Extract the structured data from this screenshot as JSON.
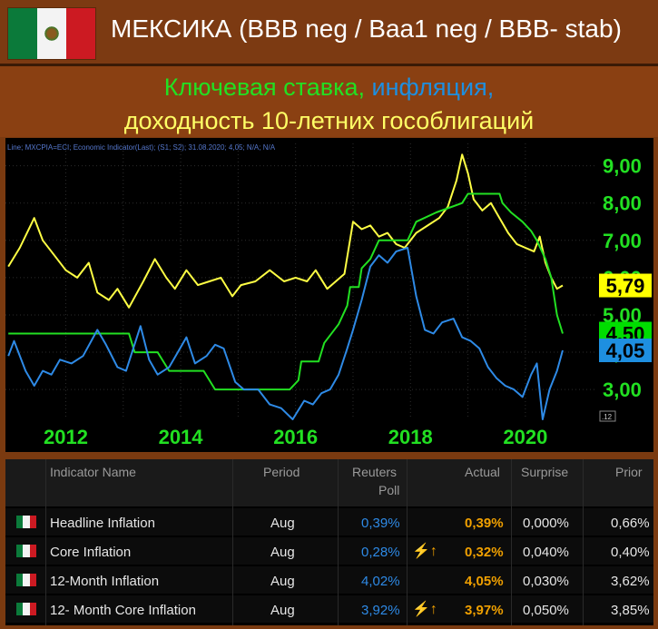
{
  "header": {
    "title": "МЕКСИКА (BBB neg / Baa1 neg / BBB- stab)",
    "flag_colors": [
      "#0b7a3a",
      "#f3f3f3",
      "#cc1a22"
    ]
  },
  "subtitle": {
    "part1_green": "Ключевая ставка,",
    "part1_blue": "инфляция,",
    "line2": "доходность 10-летних гособлигаций"
  },
  "chart_data": {
    "type": "line",
    "info_text": "Line; MXCPIA=ECI; Economic Indicator(Last); (S1; S2); 31.08.2020; 4,05; N/A; N/A",
    "x_tick_labels": [
      "2012",
      "2014",
      "2016",
      "2018",
      "2020"
    ],
    "y_tick_labels": [
      "9,00",
      "8,00",
      "7,00",
      "6,00",
      "5,00",
      "4,00",
      "3,00"
    ],
    "ylim": [
      2.2,
      9.6
    ],
    "xlim": [
      2010.95,
      2021.25
    ],
    "colors": {
      "yield": "#ffff44",
      "rate": "#22e022",
      "inflation": "#2e8ae6"
    },
    "last_value_labels": [
      {
        "series": "yield",
        "value": "5,79",
        "color": "#ffff00"
      },
      {
        "series": "rate",
        "value": "4,50",
        "color": "#00dd00"
      },
      {
        "series": "inflation",
        "value": "4,05",
        "color": "#1e8fe0"
      }
    ],
    "corner_label": ".12",
    "series": [
      {
        "key": "yield",
        "x": [
          2011.0,
          2011.2,
          2011.45,
          2011.6,
          2011.8,
          2012.0,
          2012.2,
          2012.4,
          2012.55,
          2012.75,
          2012.9,
          2013.1,
          2013.35,
          2013.55,
          2013.75,
          2013.9,
          2014.1,
          2014.3,
          2014.5,
          2014.7,
          2014.9,
          2015.05,
          2015.3,
          2015.55,
          2015.8,
          2016.0,
          2016.2,
          2016.35,
          2016.55,
          2016.7,
          2016.85,
          2017.0,
          2017.15,
          2017.3,
          2017.45,
          2017.6,
          2017.75,
          2017.9,
          2018.1,
          2018.3,
          2018.5,
          2018.65,
          2018.8,
          2018.9,
          2019.0,
          2019.1,
          2019.25,
          2019.4,
          2019.55,
          2019.7,
          2019.85,
          2020.0,
          2020.15,
          2020.25,
          2020.35,
          2020.45,
          2020.55,
          2020.65
        ],
        "values": [
          6.3,
          6.8,
          7.6,
          7.0,
          6.6,
          6.2,
          6.0,
          6.4,
          5.6,
          5.4,
          5.7,
          5.2,
          5.9,
          6.5,
          6.0,
          5.7,
          6.2,
          5.8,
          5.9,
          6.0,
          5.5,
          5.8,
          5.9,
          6.2,
          5.9,
          6.0,
          5.9,
          6.2,
          5.7,
          5.9,
          6.1,
          7.5,
          7.3,
          7.4,
          7.1,
          7.2,
          6.9,
          6.8,
          7.2,
          7.4,
          7.6,
          7.9,
          8.6,
          9.3,
          8.8,
          8.1,
          7.8,
          8.0,
          7.6,
          7.2,
          6.9,
          6.8,
          6.7,
          7.1,
          6.4,
          6.0,
          5.7,
          5.79
        ]
      },
      {
        "key": "rate",
        "x": [
          2011.0,
          2012.0,
          2013.1,
          2013.2,
          2013.6,
          2013.8,
          2014.4,
          2014.6,
          2015.9,
          2016.05,
          2016.1,
          2016.4,
          2016.5,
          2016.75,
          2016.9,
          2016.95,
          2017.1,
          2017.15,
          2017.3,
          2017.45,
          2017.95,
          2018.1,
          2018.45,
          2018.9,
          2019.0,
          2019.55,
          2019.6,
          2019.75,
          2019.95,
          2020.1,
          2020.2,
          2020.35,
          2020.45,
          2020.55,
          2020.65
        ],
        "values": [
          4.5,
          4.5,
          4.5,
          4.0,
          4.0,
          3.5,
          3.5,
          3.0,
          3.0,
          3.25,
          3.75,
          3.75,
          4.25,
          4.75,
          5.25,
          5.75,
          5.75,
          6.25,
          6.5,
          7.0,
          7.0,
          7.5,
          7.75,
          8.0,
          8.25,
          8.25,
          8.0,
          7.75,
          7.5,
          7.25,
          7.0,
          6.5,
          6.0,
          5.0,
          4.5
        ]
      },
      {
        "key": "inflation",
        "x": [
          2011.0,
          2011.1,
          2011.3,
          2011.45,
          2011.6,
          2011.75,
          2011.9,
          2012.1,
          2012.3,
          2012.55,
          2012.7,
          2012.9,
          2013.05,
          2013.3,
          2013.45,
          2013.6,
          2013.8,
          2013.95,
          2014.1,
          2014.25,
          2014.45,
          2014.6,
          2014.75,
          2014.95,
          2015.1,
          2015.35,
          2015.55,
          2015.75,
          2015.95,
          2016.15,
          2016.3,
          2016.45,
          2016.6,
          2016.75,
          2016.9,
          2017.0,
          2017.15,
          2017.3,
          2017.45,
          2017.6,
          2017.75,
          2017.95,
          2018.1,
          2018.25,
          2018.4,
          2018.55,
          2018.75,
          2018.9,
          2019.05,
          2019.2,
          2019.35,
          2019.5,
          2019.65,
          2019.8,
          2019.95,
          2020.1,
          2020.2,
          2020.3,
          2020.42,
          2020.55,
          2020.65
        ],
        "values": [
          3.9,
          4.3,
          3.5,
          3.1,
          3.5,
          3.4,
          3.8,
          3.7,
          3.9,
          4.6,
          4.2,
          3.6,
          3.5,
          4.7,
          3.8,
          3.4,
          3.6,
          4.0,
          4.4,
          3.7,
          3.9,
          4.2,
          4.1,
          3.2,
          3.0,
          3.0,
          2.6,
          2.5,
          2.2,
          2.7,
          2.6,
          2.9,
          3.0,
          3.4,
          4.1,
          4.6,
          5.4,
          6.3,
          6.6,
          6.4,
          6.7,
          6.8,
          5.5,
          4.6,
          4.5,
          4.8,
          4.9,
          4.4,
          4.3,
          4.1,
          3.6,
          3.3,
          3.1,
          3.0,
          2.8,
          3.4,
          3.7,
          2.2,
          3.0,
          3.5,
          4.05
        ]
      }
    ]
  },
  "table": {
    "headers": {
      "name": "Indicator Name",
      "period": "Period",
      "poll1": "Reuters",
      "poll2": "Poll",
      "actual": "Actual",
      "surprise": "Surprise",
      "prior": "Prior"
    },
    "rows": [
      {
        "name": "Headline Inflation",
        "period": "Aug",
        "poll": "0,39%",
        "bolt": "",
        "actual": "0,39%",
        "surprise": "0,000%",
        "prior": "0,66%"
      },
      {
        "name": "Core Inflation",
        "period": "Aug",
        "poll": "0,28%",
        "bolt": "⚡↑",
        "actual": "0,32%",
        "surprise": "0,040%",
        "prior": "0,40%"
      },
      {
        "name": "12-Month Inflation",
        "period": "Aug",
        "poll": "4,02%",
        "bolt": "",
        "actual": "4,05%",
        "surprise": "0,030%",
        "prior": "3,62%"
      },
      {
        "name": "12- Month Core Inflation",
        "period": "Aug",
        "poll": "3,92%",
        "bolt": "⚡↑",
        "actual": "3,97%",
        "surprise": "0,050%",
        "prior": "3,85%"
      }
    ]
  }
}
